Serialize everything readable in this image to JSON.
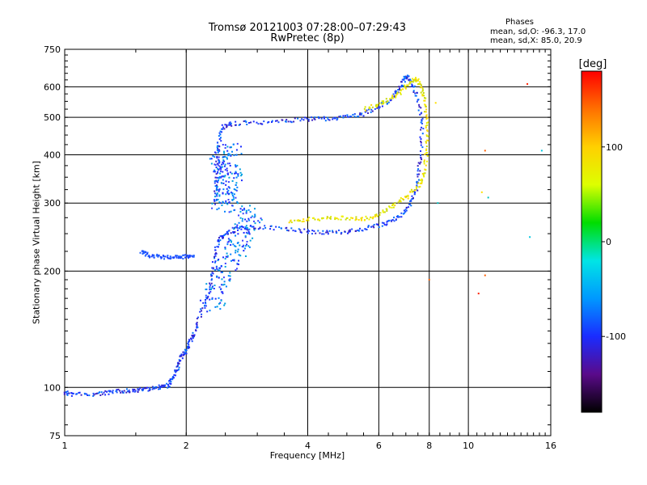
{
  "header": {
    "title_line1": "Tromsø 20121003 07:28:00–07:29:43",
    "title_line2": "RwPretec (8p)"
  },
  "phase_stats": {
    "heading": "Phases",
    "o_label": "mean, sd,O:",
    "o_values": "-96.3, 17.0",
    "x_label": "mean, sd,X:",
    "x_values": "85.0, 20.9"
  },
  "chart_data": {
    "type": "scatter",
    "xlabel": "Frequency [MHz]",
    "ylabel": "Stationary phase Virtual Height [km]",
    "x_scale": "log",
    "y_scale": "log",
    "xlim": [
      1,
      16
    ],
    "ylim": [
      75,
      750
    ],
    "x_ticks": [
      1,
      2,
      4,
      6,
      8,
      10,
      16
    ],
    "y_ticks": [
      75,
      100,
      200,
      300,
      400,
      500,
      600,
      750
    ],
    "grid": true,
    "colorbar": {
      "label": "[deg]",
      "range": [
        -180,
        180
      ],
      "ticks": [
        -100,
        0,
        100
      ],
      "stops": [
        "#000000",
        "#5a0a8a",
        "#1a2cff",
        "#0098ff",
        "#00e5e5",
        "#00dd00",
        "#ddff00",
        "#ffd000",
        "#ff7000",
        "#ff0000"
      ]
    },
    "traces": [
      {
        "mode": "O",
        "points": [
          [
            1.0,
            97
          ],
          [
            1.05,
            96
          ],
          [
            1.2,
            96
          ],
          [
            1.3,
            97
          ],
          [
            1.4,
            98
          ],
          [
            1.5,
            98
          ],
          [
            1.6,
            99
          ],
          [
            1.7,
            100
          ],
          [
            1.8,
            101
          ],
          [
            1.85,
            105
          ],
          [
            1.9,
            112
          ],
          [
            1.95,
            120
          ],
          [
            2.0,
            125
          ],
          [
            2.05,
            132
          ],
          [
            2.1,
            140
          ],
          [
            2.2,
            160
          ],
          [
            2.3,
            185
          ],
          [
            2.35,
            215
          ],
          [
            2.4,
            240
          ],
          [
            2.5,
            250
          ],
          [
            2.7,
            257
          ],
          [
            3.0,
            260
          ],
          [
            3.5,
            258
          ],
          [
            4.0,
            253
          ],
          [
            4.5,
            252
          ],
          [
            5.0,
            253
          ],
          [
            5.5,
            257
          ],
          [
            6.0,
            262
          ],
          [
            6.5,
            270
          ],
          [
            7.0,
            285
          ],
          [
            7.3,
            310
          ],
          [
            7.5,
            340
          ],
          [
            7.6,
            390
          ],
          [
            7.7,
            480
          ],
          [
            7.5,
            560
          ],
          [
            7.2,
            620
          ],
          [
            7.0,
            640
          ],
          [
            6.8,
            600
          ],
          [
            6.5,
            560
          ],
          [
            6.0,
            530
          ],
          [
            5.5,
            510
          ],
          [
            5.0,
            500
          ],
          [
            4.5,
            496
          ],
          [
            4.0,
            494
          ],
          [
            3.5,
            490
          ],
          [
            3.0,
            485
          ],
          [
            2.6,
            482
          ],
          [
            2.45,
            470
          ],
          [
            2.4,
            420
          ],
          [
            2.38,
            350
          ],
          [
            2.36,
            300
          ]
        ]
      },
      {
        "mode": "X",
        "points": [
          [
            3.6,
            270
          ],
          [
            4.0,
            272
          ],
          [
            4.5,
            275
          ],
          [
            5.0,
            275
          ],
          [
            5.5,
            272
          ],
          [
            6.0,
            280
          ],
          [
            6.5,
            295
          ],
          [
            7.0,
            310
          ],
          [
            7.5,
            330
          ],
          [
            7.8,
            360
          ],
          [
            7.9,
            420
          ],
          [
            7.9,
            490
          ],
          [
            7.8,
            560
          ],
          [
            7.6,
            610
          ],
          [
            7.4,
            630
          ],
          [
            7.0,
            600
          ],
          [
            6.5,
            560
          ],
          [
            6.0,
            540
          ],
          [
            5.5,
            525
          ]
        ]
      },
      {
        "mode": "spread_F",
        "points": [
          [
            2.3,
            160
          ],
          [
            2.4,
            180
          ],
          [
            2.5,
            200
          ],
          [
            2.6,
            220
          ],
          [
            2.7,
            240
          ],
          [
            2.8,
            260
          ],
          [
            2.9,
            280
          ],
          [
            2.45,
            300
          ],
          [
            2.5,
            320
          ],
          [
            2.55,
            340
          ],
          [
            2.6,
            360
          ],
          [
            2.4,
            380
          ],
          [
            2.5,
            400
          ],
          [
            2.6,
            420
          ]
        ]
      },
      {
        "mode": "low_layer",
        "points": [
          [
            1.55,
            225
          ],
          [
            1.6,
            220
          ],
          [
            1.7,
            218
          ],
          [
            1.8,
            217
          ],
          [
            1.9,
            217
          ],
          [
            2.0,
            218
          ],
          [
            2.1,
            219
          ]
        ]
      },
      {
        "mode": "outliers",
        "points": [
          [
            11.0,
            410
          ],
          [
            14.0,
            610
          ],
          [
            15.2,
            410
          ],
          [
            10.8,
            320
          ],
          [
            11.2,
            310
          ],
          [
            11.0,
            195
          ],
          [
            10.6,
            175
          ],
          [
            14.2,
            245
          ],
          [
            8.3,
            545
          ],
          [
            8.4,
            300
          ],
          [
            8.0,
            190
          ]
        ]
      }
    ]
  }
}
